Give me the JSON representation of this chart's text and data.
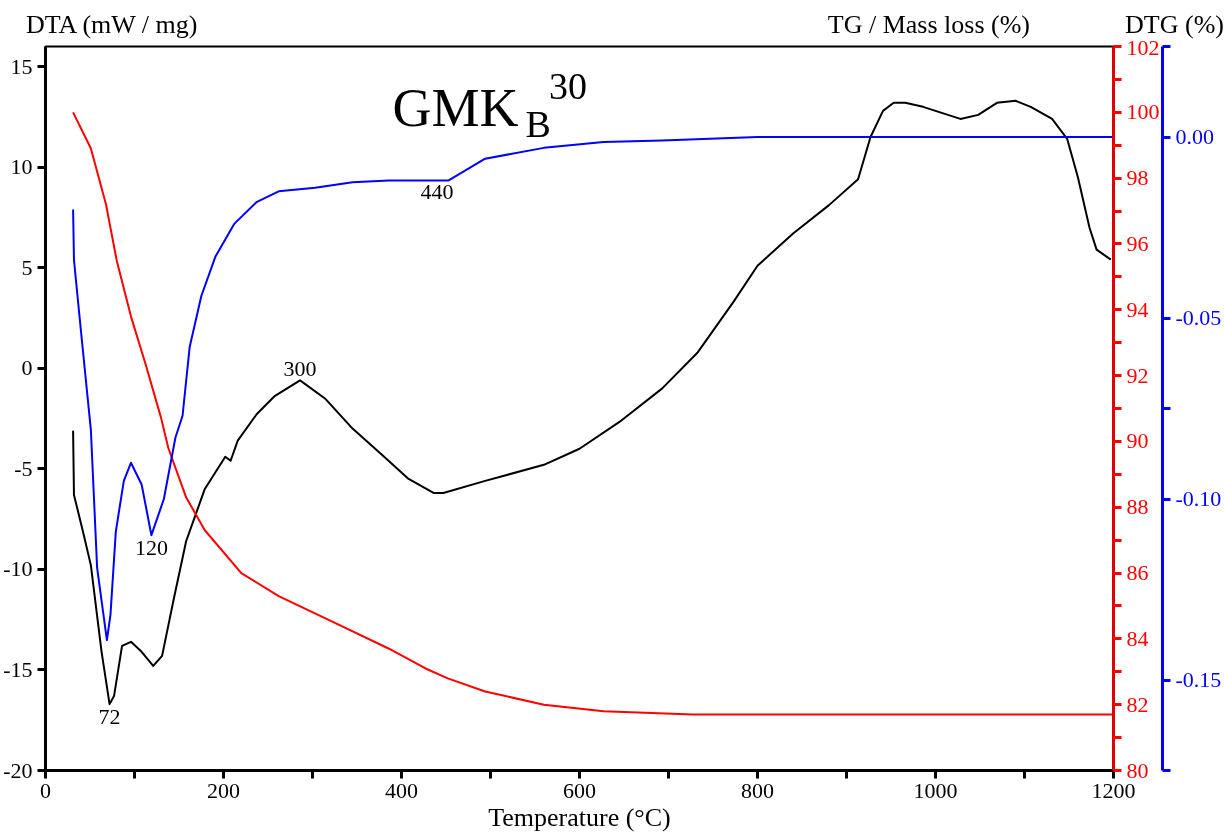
{
  "chart_data": {
    "type": "line",
    "title": "GMK$_{B}$$^{30}$",
    "xlabel": "Temperature (°C)",
    "ylabel": "DTA (mW / mg)",
    "y2label": "TG / Mass loss (%)",
    "y3label": "DTG (%)",
    "xlim": [
      0,
      1200
    ],
    "xticks": [
      0,
      {
        "value": 100,
        "label": null
      },
      200,
      {
        "value": 300,
        "label": null
      },
      400,
      {
        "value": 500,
        "label": null
      },
      600,
      {
        "value": 700,
        "label": null
      },
      800,
      {
        "value": 900,
        "label": null
      },
      1000,
      {
        "value": 1100,
        "label": null
      },
      1200
    ],
    "ylim": [
      -20,
      16
    ],
    "yticks": [
      -20,
      -15,
      -10,
      -5,
      0,
      5,
      10,
      15
    ],
    "y2lim": [
      80,
      102
    ],
    "y2ticks": [
      80,
      {
        "value": 81,
        "label": null
      },
      82,
      {
        "value": 83,
        "label": null
      },
      84,
      {
        "value": 85,
        "label": null
      },
      86,
      {
        "value": 87,
        "label": null
      },
      88,
      {
        "value": 89,
        "label": null
      },
      90,
      {
        "value": 91,
        "label": null
      },
      92,
      {
        "value": 93,
        "label": null
      },
      94,
      {
        "value": 95,
        "label": null
      },
      96,
      {
        "value": 97,
        "label": null
      },
      98,
      {
        "value": 99,
        "label": null
      },
      100,
      {
        "value": 101,
        "label": null
      },
      102
    ],
    "y3lim": [
      -0.175,
      0.025
    ],
    "y3ticks": [
      {
        "value": -0.175,
        "label": null
      },
      {
        "value": -0.15,
        "label": "-0.15"
      },
      {
        "value": -0.1,
        "label": "-0.10"
      },
      {
        "value": -0.075,
        "label": null
      },
      {
        "value": -0.05,
        "label": "-0.05"
      },
      {
        "value": 0,
        "label": "0.00"
      },
      {
        "value": 0.025,
        "label": null
      }
    ],
    "grid": false,
    "marker": "none",
    "line_style": "solid",
    "series": [
      {
        "color": "#000000",
        "x": [
          31,
          32,
          42,
          51,
          63,
          72,
          77,
          86,
          96,
          108,
          121,
          131,
          144,
          158,
          179,
          202,
          208,
          216,
          237,
          257,
          286,
          314,
          345,
          378,
          408,
          436,
          447,
          494,
          560,
          600,
          647,
          693,
          733,
          773,
          800,
          840,
          880,
          913,
          927,
          941,
          953,
          966,
          986,
          1007,
          1028,
          1048,
          1069,
          1090,
          1107,
          1131,
          1148,
          1160,
          1173,
          1181,
          1197
        ],
        "values": [
          -3.1,
          -6.3,
          -8.1,
          -9.8,
          -14.1,
          -16.7,
          -16.3,
          -13.8,
          -13.6,
          -14.1,
          -14.8,
          -14.3,
          -11.5,
          -8.6,
          -6.0,
          -4.4,
          -4.6,
          -3.6,
          -2.3,
          -1.4,
          -0.6,
          -1.5,
          -3.0,
          -4.3,
          -5.5,
          -6.2,
          -6.2,
          -5.6,
          -4.8,
          -4.0,
          -2.6,
          -1.0,
          0.8,
          3.3,
          5.1,
          6.7,
          8.1,
          9.4,
          11.5,
          12.8,
          13.2,
          13.2,
          13.0,
          12.7,
          12.4,
          12.6,
          13.2,
          13.3,
          13.0,
          12.4,
          11.4,
          9.5,
          7.0,
          5.9,
          5.4
        ]
      },
      {
        "color": "#ff0000",
        "axis": "y2",
        "x": [
          31,
          51,
          68,
          80,
          96,
          113,
          130,
          138,
          158,
          179,
          220,
          262,
          324,
          386,
          427,
          452,
          494,
          560,
          627,
          727,
          826,
          920,
          1200
        ],
        "values": [
          100.0,
          98.9,
          97.2,
          95.5,
          93.8,
          92.3,
          90.7,
          89.8,
          88.3,
          87.3,
          86.0,
          85.3,
          84.5,
          83.7,
          83.1,
          82.8,
          82.4,
          82.0,
          81.8,
          81.7,
          81.7,
          81.7,
          81.7
        ]
      },
      {
        "color": "#0000ff",
        "axis": "y3",
        "x": [
          31,
          32,
          40,
          51,
          58,
          69,
          73,
          79,
          88,
          96,
          108,
          119,
          133,
          146,
          154,
          162,
          175,
          191,
          212,
          237,
          262,
          303,
          345,
          386,
          436,
          453,
          494,
          560,
          627,
          693,
          800,
          1200
        ],
        "values": [
          -0.02,
          -0.034,
          -0.054,
          -0.081,
          -0.119,
          -0.139,
          -0.132,
          -0.109,
          -0.095,
          -0.09,
          -0.096,
          -0.11,
          -0.1,
          -0.083,
          -0.077,
          -0.058,
          -0.044,
          -0.033,
          -0.024,
          -0.018,
          -0.015,
          -0.014,
          -0.0125,
          -0.012,
          -0.012,
          -0.012,
          -0.006,
          -0.003,
          -0.0014,
          -0.001,
          0.0,
          0.0
        ]
      }
    ],
    "annotations": [
      {
        "text": "72",
        "x": 72,
        "y": -16.7
      },
      {
        "text": "120",
        "x": 119,
        "y": -8.3
      },
      {
        "text": "300",
        "x": 286,
        "y": -0.6
      },
      {
        "text": "440",
        "x": 440,
        "y": 9.4
      }
    ]
  }
}
